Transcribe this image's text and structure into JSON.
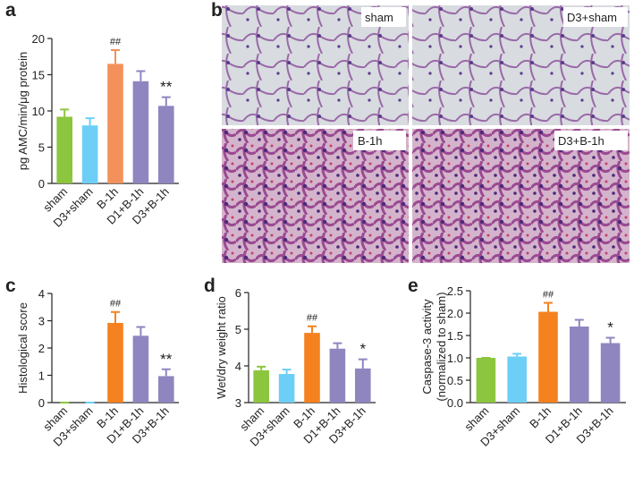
{
  "chart_data": [
    {
      "type": "bar",
      "label": "a",
      "ylabel": [
        "pg AMC/min/μg protein"
      ],
      "categories": [
        "sham",
        "D3+sham",
        "B-1h",
        "D1+B-1h",
        "D3+B-1h"
      ],
      "values": [
        9.2,
        8.0,
        16.5,
        14.1,
        10.7
      ],
      "errors": [
        1.0,
        1.0,
        1.9,
        1.4,
        1.2
      ],
      "annotations": [
        null,
        null,
        "##",
        null,
        "**"
      ],
      "colors": [
        "#8cc63f",
        "#6dcff6",
        "#f4915b",
        "#8f86c0",
        "#8f86c0"
      ],
      "ylim": [
        0,
        20
      ],
      "yticks": [
        0,
        5,
        10,
        15,
        20
      ]
    },
    {
      "type": "bar",
      "label": "c",
      "ylabel": [
        "Histological score"
      ],
      "categories": [
        "sham",
        "D3+sham",
        "B-1h",
        "D1+B-1h",
        "D3+B-1h"
      ],
      "values": [
        0,
        0,
        2.92,
        2.45,
        0.97
      ],
      "errors": [
        0,
        0,
        0.4,
        0.32,
        0.25
      ],
      "annotations": [
        null,
        null,
        "##",
        null,
        "**"
      ],
      "colors": [
        "#8cc63f",
        "#6dcff6",
        "#f5821f",
        "#8f86c0",
        "#8f86c0"
      ],
      "ylim": [
        0,
        4
      ],
      "yticks": [
        0,
        1,
        2,
        3,
        4
      ]
    },
    {
      "type": "bar",
      "label": "d",
      "ylabel": [
        "Wet/dry weight ratio"
      ],
      "categories": [
        "sham",
        "D3+sham",
        "B-1h",
        "D1+B-1h",
        "D3+B-1h"
      ],
      "values": [
        3.88,
        3.78,
        4.9,
        4.47,
        3.93
      ],
      "errors": [
        0.1,
        0.12,
        0.18,
        0.15,
        0.25
      ],
      "annotations": [
        null,
        null,
        "##",
        null,
        "*"
      ],
      "colors": [
        "#8cc63f",
        "#6dcff6",
        "#f5821f",
        "#8f86c0",
        "#8f86c0"
      ],
      "ylim": [
        3,
        6
      ],
      "yticks": [
        3,
        4,
        5,
        6
      ]
    },
    {
      "type": "bar",
      "label": "e",
      "ylabel": [
        "Caspase-3 activity",
        "(normalized to sham)"
      ],
      "categories": [
        "sham",
        "D3+sham",
        "B-1h",
        "D1+B-1h",
        "D3+B-1h"
      ],
      "values": [
        1.0,
        1.03,
        2.03,
        1.7,
        1.33
      ],
      "errors": [
        0,
        0.06,
        0.2,
        0.15,
        0.12
      ],
      "annotations": [
        null,
        null,
        "##",
        null,
        "*"
      ],
      "colors": [
        "#8cc63f",
        "#6dcff6",
        "#f5821f",
        "#8f86c0",
        "#8f86c0"
      ],
      "ylim": [
        0,
        2.5
      ],
      "yticks": [
        {
          "value": 0,
          "label": "0.0"
        },
        0.5,
        {
          "value": 1,
          "label": "1.0"
        },
        1.5,
        {
          "value": 2,
          "label": "2.0"
        },
        2.5
      ]
    }
  ],
  "micrographs": {
    "label": "b",
    "panels": [
      "sham",
      "D3+sham",
      "B-1h",
      "D3+B-1h"
    ]
  }
}
